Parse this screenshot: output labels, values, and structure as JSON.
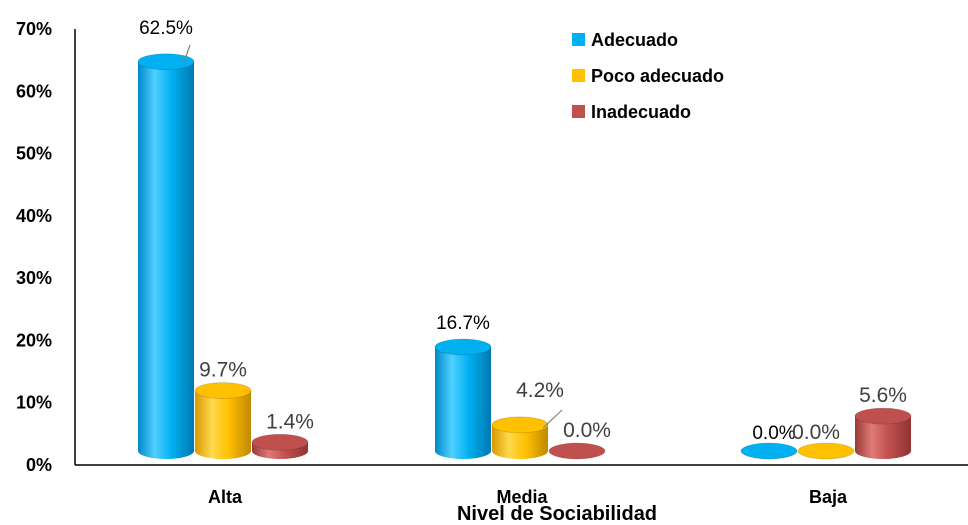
{
  "chart_data": {
    "type": "bar",
    "style": "3d-cylinder",
    "categories": [
      "Alta",
      "Media",
      "Baja"
    ],
    "xlabel": "Nivel de Sociabilidad",
    "ylabel": "",
    "ylim": [
      0,
      70
    ],
    "yticks": [
      "0%",
      "10%",
      "20%",
      "30%",
      "40%",
      "50%",
      "60%",
      "70%"
    ],
    "grid": false,
    "legend_position": "top-right",
    "series": [
      {
        "name": "Adecuado",
        "values": [
          62.5,
          16.7,
          0.0
        ],
        "labels": [
          "62.5%",
          "16.7%",
          "0.0%"
        ],
        "color": "#00B0F0"
      },
      {
        "name": "Poco adecuado",
        "values": [
          9.7,
          4.2,
          0.0
        ],
        "labels": [
          "9.7%",
          "4.2%",
          "0.0%"
        ],
        "color": "#FFC000"
      },
      {
        "name": "Inadecuado",
        "values": [
          1.4,
          0.0,
          5.6
        ],
        "labels": [
          "1.4%",
          "0.0%",
          "5.6%"
        ],
        "color": "#C0504D"
      }
    ]
  }
}
